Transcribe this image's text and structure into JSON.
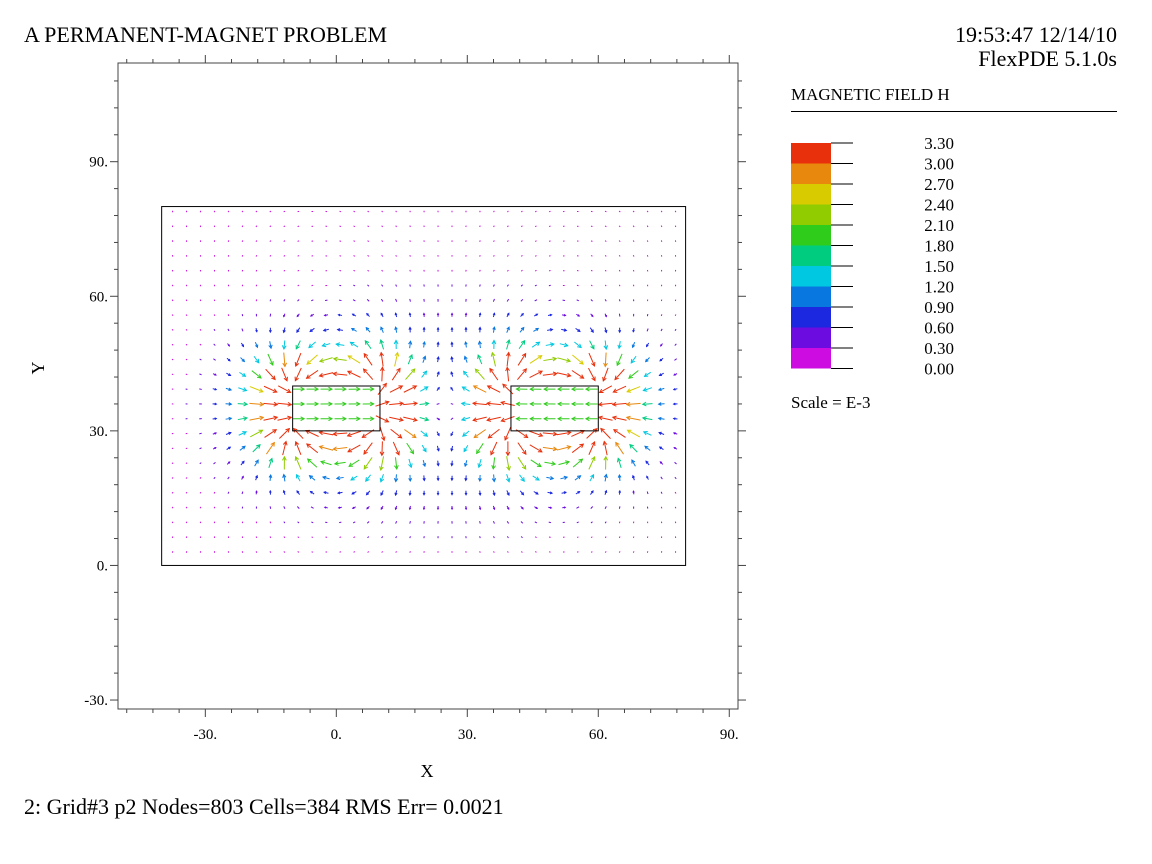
{
  "header": {
    "title": "A PERMANENT-MAGNET PROBLEM",
    "timestamp": "19:53:47 12/14/10",
    "software": "FlexPDE 5.1.0s"
  },
  "footer": {
    "status": "2:  Grid#3  p2  Nodes=803 Cells=384 RMS Err= 0.0021"
  },
  "legend": {
    "title": "MAGNETIC FIELD H",
    "scale_note": "Scale = E-3",
    "levels": [
      "3.30",
      "3.00",
      "2.70",
      "2.40",
      "2.10",
      "1.80",
      "1.50",
      "1.20",
      "0.90",
      "0.60",
      "0.30",
      "0.00"
    ],
    "colors": [
      "#e8300c",
      "#e8880c",
      "#d8cc00",
      "#90cc00",
      "#30cc1c",
      "#00cc80",
      "#00c8e0",
      "#0878e0",
      "#1c28e0",
      "#6c0ce0",
      "#cc0ce0"
    ]
  },
  "chart_data": {
    "type": "vector-field",
    "xlabel": "X",
    "ylabel": "Y",
    "xlim": [
      -50,
      92
    ],
    "ylim": [
      -32,
      112
    ],
    "x_ticks": [
      "-30.",
      "0.",
      "30.",
      "60.",
      "90."
    ],
    "x_tick_values": [
      -30,
      0,
      30,
      60,
      90
    ],
    "y_ticks": [
      "-30.",
      "0.",
      "30.",
      "60.",
      "90."
    ],
    "y_tick_values": [
      -30,
      0,
      30,
      60,
      90
    ],
    "domain": {
      "x": [
        -40,
        80
      ],
      "y": [
        0,
        80
      ]
    },
    "magnets": [
      {
        "x": [
          -10,
          10
        ],
        "y": [
          30,
          40
        ]
      },
      {
        "x": [
          40,
          60
        ],
        "y": [
          30,
          40
        ]
      }
    ],
    "field_max": 3.3
  }
}
